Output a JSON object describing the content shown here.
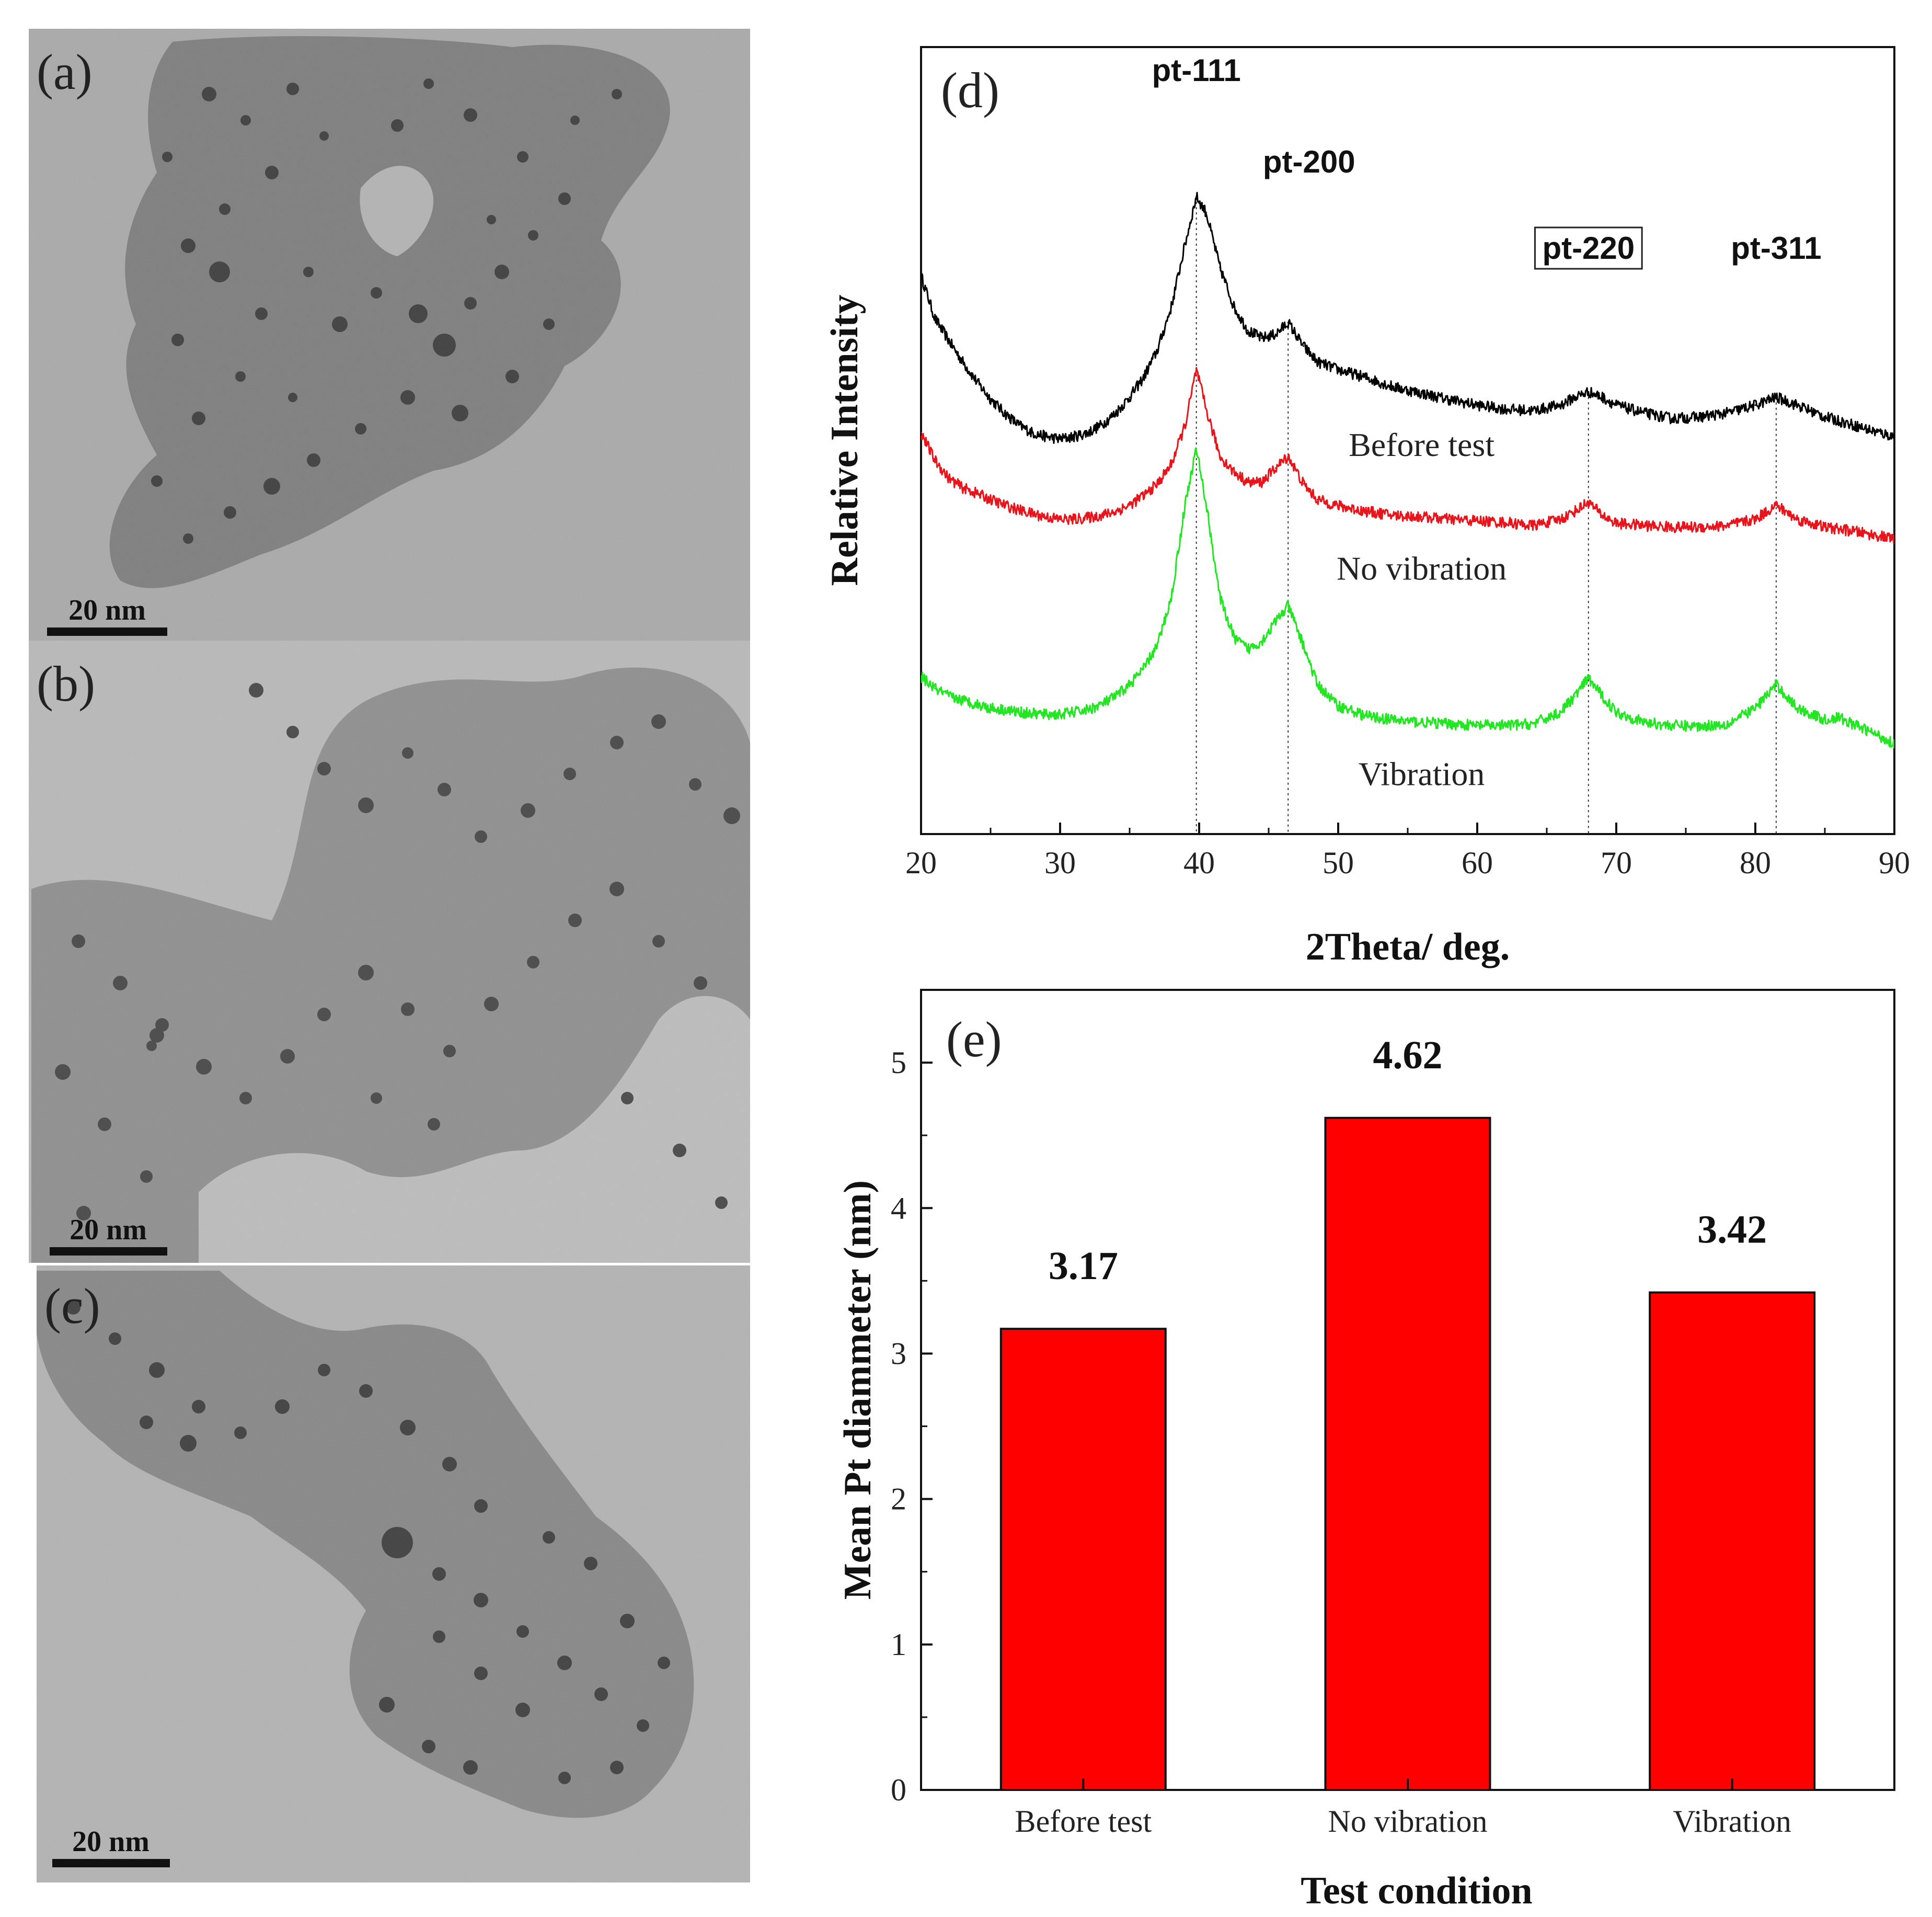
{
  "tem_panels": [
    {
      "label": "(a)",
      "scale_bar": "20 nm"
    },
    {
      "label": "(b)",
      "scale_bar": "20 nm"
    },
    {
      "label": "(c)",
      "scale_bar": "20 nm"
    }
  ],
  "chart_data": [
    {
      "panel": "(d)",
      "type": "line",
      "xlabel": "2Theta/ deg.",
      "ylabel": "Relative Intensity",
      "xlim": [
        20,
        90
      ],
      "x_ticks": [
        20,
        30,
        40,
        50,
        60,
        70,
        80,
        90
      ],
      "peaks": [
        {
          "label": "pt-111",
          "x": 39.8,
          "boxed": false
        },
        {
          "label": "pt-200",
          "x": 46.4,
          "boxed": false
        },
        {
          "label": "pt-220",
          "x": 68.0,
          "boxed": true
        },
        {
          "label": "pt-311",
          "x": 81.5,
          "boxed": false
        }
      ],
      "series": [
        {
          "name": "Before test",
          "color": "#000000",
          "points": [
            [
              20,
              0.71
            ],
            [
              21,
              0.655
            ],
            [
              22,
              0.627
            ],
            [
              23,
              0.6
            ],
            [
              24,
              0.575
            ],
            [
              25,
              0.553
            ],
            [
              26,
              0.535
            ],
            [
              27,
              0.52
            ],
            [
              28,
              0.51
            ],
            [
              29,
              0.505
            ],
            [
              30,
              0.502
            ],
            [
              31,
              0.505
            ],
            [
              32,
              0.51
            ],
            [
              33,
              0.52
            ],
            [
              34,
              0.535
            ],
            [
              35,
              0.555
            ],
            [
              36,
              0.58
            ],
            [
              37,
              0.615
            ],
            [
              38,
              0.67
            ],
            [
              39,
              0.75
            ],
            [
              39.8,
              0.81
            ],
            [
              40.5,
              0.79
            ],
            [
              41.5,
              0.72
            ],
            [
              42.5,
              0.67
            ],
            [
              43.5,
              0.64
            ],
            [
              44.5,
              0.63
            ],
            [
              45.5,
              0.635
            ],
            [
              46.4,
              0.65
            ],
            [
              47.5,
              0.62
            ],
            [
              48.5,
              0.6
            ],
            [
              50,
              0.59
            ],
            [
              52,
              0.58
            ],
            [
              54,
              0.568
            ],
            [
              56,
              0.56
            ],
            [
              58,
              0.552
            ],
            [
              60,
              0.545
            ],
            [
              62,
              0.54
            ],
            [
              64,
              0.538
            ],
            [
              66,
              0.545
            ],
            [
              67,
              0.555
            ],
            [
              68,
              0.562
            ],
            [
              69,
              0.555
            ],
            [
              70,
              0.545
            ],
            [
              72,
              0.535
            ],
            [
              74,
              0.528
            ],
            [
              76,
              0.53
            ],
            [
              78,
              0.535
            ],
            [
              80,
              0.545
            ],
            [
              81.5,
              0.555
            ],
            [
              83,
              0.545
            ],
            [
              85,
              0.53
            ],
            [
              87,
              0.52
            ],
            [
              88.5,
              0.512
            ],
            [
              90,
              0.505
            ]
          ]
        },
        {
          "name": "No vibration",
          "color": "#e8141c",
          "points": [
            [
              20,
              0.51
            ],
            [
              21,
              0.475
            ],
            [
              22,
              0.452
            ],
            [
              23,
              0.44
            ],
            [
              24,
              0.433
            ],
            [
              25,
              0.425
            ],
            [
              26,
              0.418
            ],
            [
              27,
              0.412
            ],
            [
              28,
              0.407
            ],
            [
              29,
              0.403
            ],
            [
              30,
              0.4
            ],
            [
              31,
              0.4
            ],
            [
              32,
              0.402
            ],
            [
              33,
              0.405
            ],
            [
              34,
              0.41
            ],
            [
              35,
              0.418
            ],
            [
              36,
              0.43
            ],
            [
              37,
              0.445
            ],
            [
              38,
              0.47
            ],
            [
              39,
              0.52
            ],
            [
              39.8,
              0.59
            ],
            [
              40.5,
              0.54
            ],
            [
              41.5,
              0.48
            ],
            [
              42.5,
              0.46
            ],
            [
              43.5,
              0.447
            ],
            [
              44.5,
              0.447
            ],
            [
              45.5,
              0.465
            ],
            [
              46.4,
              0.48
            ],
            [
              47.5,
              0.445
            ],
            [
              48.5,
              0.425
            ],
            [
              50,
              0.417
            ],
            [
              52,
              0.41
            ],
            [
              54,
              0.405
            ],
            [
              56,
              0.403
            ],
            [
              58,
              0.4
            ],
            [
              60,
              0.398
            ],
            [
              62,
              0.396
            ],
            [
              64,
              0.392
            ],
            [
              66,
              0.4
            ],
            [
              67,
              0.41
            ],
            [
              68,
              0.422
            ],
            [
              69,
              0.405
            ],
            [
              70,
              0.395
            ],
            [
              72,
              0.392
            ],
            [
              74,
              0.39
            ],
            [
              76,
              0.39
            ],
            [
              78,
              0.392
            ],
            [
              80,
              0.4
            ],
            [
              81.5,
              0.418
            ],
            [
              83,
              0.4
            ],
            [
              85,
              0.39
            ],
            [
              87,
              0.385
            ],
            [
              88.5,
              0.38
            ],
            [
              90,
              0.375
            ]
          ]
        },
        {
          "name": "Vibration",
          "color": "#22e622",
          "points": [
            [
              20,
              0.2
            ],
            [
              21,
              0.185
            ],
            [
              22,
              0.175
            ],
            [
              23,
              0.17
            ],
            [
              24,
              0.165
            ],
            [
              25,
              0.16
            ],
            [
              26,
              0.158
            ],
            [
              27,
              0.155
            ],
            [
              28,
              0.153
            ],
            [
              29,
              0.152
            ],
            [
              30,
              0.152
            ],
            [
              31,
              0.155
            ],
            [
              32,
              0.158
            ],
            [
              33,
              0.165
            ],
            [
              34,
              0.175
            ],
            [
              35,
              0.19
            ],
            [
              36,
              0.21
            ],
            [
              37,
              0.24
            ],
            [
              38,
              0.3
            ],
            [
              39,
              0.42
            ],
            [
              39.8,
              0.49
            ],
            [
              40.5,
              0.42
            ],
            [
              41.5,
              0.3
            ],
            [
              42.5,
              0.25
            ],
            [
              43.5,
              0.235
            ],
            [
              44.5,
              0.245
            ],
            [
              45.5,
              0.27
            ],
            [
              46.4,
              0.29
            ],
            [
              47.5,
              0.24
            ],
            [
              48.5,
              0.19
            ],
            [
              50,
              0.163
            ],
            [
              52,
              0.15
            ],
            [
              54,
              0.145
            ],
            [
              56,
              0.142
            ],
            [
              58,
              0.14
            ],
            [
              60,
              0.138
            ],
            [
              62,
              0.138
            ],
            [
              64,
              0.14
            ],
            [
              66,
              0.155
            ],
            [
              67,
              0.175
            ],
            [
              68,
              0.198
            ],
            [
              69,
              0.175
            ],
            [
              70,
              0.155
            ],
            [
              72,
              0.142
            ],
            [
              74,
              0.138
            ],
            [
              76,
              0.137
            ],
            [
              78,
              0.14
            ],
            [
              80,
              0.16
            ],
            [
              81.5,
              0.19
            ],
            [
              83,
              0.16
            ],
            [
              85,
              0.145
            ],
            [
              86,
              0.148
            ],
            [
              87,
              0.14
            ],
            [
              88.5,
              0.128
            ],
            [
              90,
              0.115
            ]
          ]
        }
      ]
    },
    {
      "panel": "(e)",
      "type": "bar",
      "xlabel": "Test condition",
      "ylabel": "Mean Pt diammeter (nm)",
      "categories": [
        "Before test",
        "No vibration",
        "Vibration"
      ],
      "values": [
        3.17,
        4.62,
        3.42
      ],
      "value_labels": [
        "3.17",
        "4.62",
        "3.42"
      ],
      "ylim": [
        0,
        5.5
      ],
      "y_ticks": [
        0,
        1,
        2,
        3,
        4,
        5
      ],
      "bar_color": "#ff0000"
    }
  ]
}
